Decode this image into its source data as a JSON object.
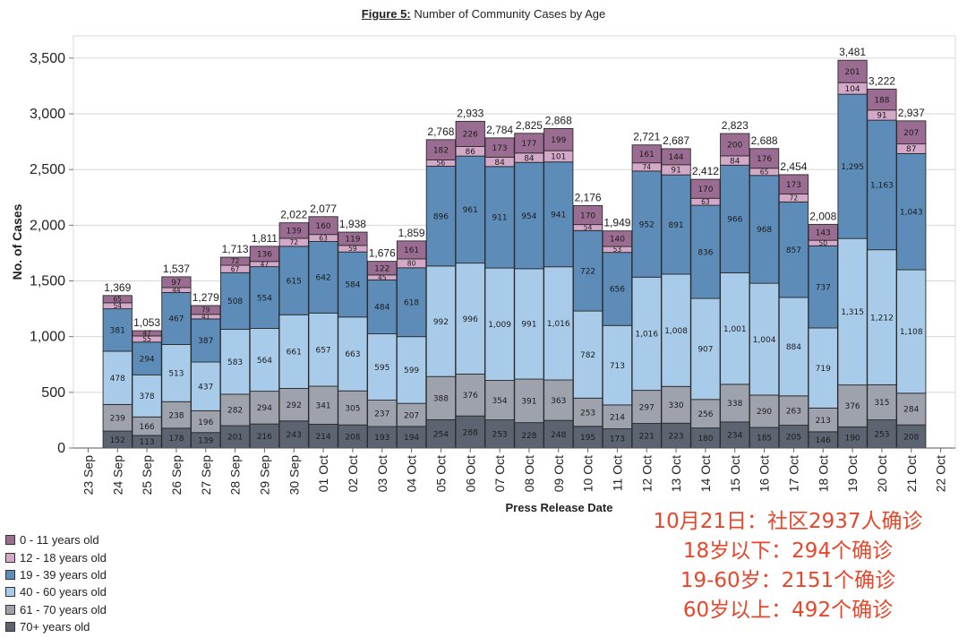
{
  "figure": {
    "label": "Figure 5:",
    "title": "Number of Community Cases by Age"
  },
  "chart_data": {
    "type": "bar",
    "stacked": true,
    "xlabel": "Press Release Date",
    "ylabel": "No. of Cases",
    "ylim": [
      0,
      3700
    ],
    "yticks": [
      0,
      500,
      1000,
      1500,
      2000,
      2500,
      3000,
      3500
    ],
    "x_tick_labels": [
      "23 Sep",
      "24 Sep",
      "25 Sep",
      "26 Sep",
      "27 Sep",
      "28 Sep",
      "29 Sep",
      "30 Sep",
      "01 Oct",
      "02 Oct",
      "03 Oct",
      "04 Oct",
      "05 Oct",
      "06 Oct",
      "07 Oct",
      "08 Oct",
      "09 Oct",
      "10 Oct",
      "11 Oct",
      "12 Oct",
      "13 Oct",
      "14 Oct",
      "15 Oct",
      "16 Oct",
      "17 Oct",
      "18 Oct",
      "19 Oct",
      "20 Oct",
      "21 Oct",
      "22 Oct"
    ],
    "categories": [
      "24 Sep",
      "25 Sep",
      "26 Sep",
      "27 Sep",
      "28 Sep",
      "29 Sep",
      "30 Sep",
      "01 Oct",
      "02 Oct",
      "03 Oct",
      "04 Oct",
      "05 Oct",
      "06 Oct",
      "07 Oct",
      "08 Oct",
      "09 Oct",
      "10 Oct",
      "11 Oct",
      "12 Oct",
      "13 Oct",
      "14 Oct",
      "15 Oct",
      "16 Oct",
      "17 Oct",
      "18 Oct",
      "19 Oct",
      "20 Oct",
      "21 Oct"
    ],
    "totals": [
      1369,
      1053,
      1537,
      1279,
      1713,
      1811,
      2022,
      2077,
      1938,
      1676,
      1859,
      2768,
      2933,
      2784,
      2825,
      2868,
      2176,
      1949,
      2721,
      2687,
      2412,
      2823,
      2688,
      2454,
      2008,
      3481,
      3222,
      2937
    ],
    "total_labels": [
      "1,369",
      "1,053",
      "1,537",
      "1,279",
      "1,713",
      "1,811",
      "2,022",
      "2,077",
      "1,938",
      "1,676",
      "1,859",
      "2,768",
      "2,933",
      "2,784",
      "2,825",
      "2,868",
      "2,176",
      "1,949",
      "2,721",
      "2,687",
      "2,412",
      "2,823",
      "2,688",
      "2,454",
      "2,008",
      "3,481",
      "3,222",
      "2,937"
    ],
    "series": [
      {
        "name": "70+ years old",
        "color": "#5b6470",
        "values": [
          152,
          113,
          178,
          139,
          201,
          216,
          243,
          214,
          208,
          193,
          194,
          254,
          288,
          253,
          228,
          248,
          195,
          173,
          221,
          223,
          180,
          234,
          185,
          205,
          146,
          190,
          253,
          208
        ],
        "labels": [
          "152",
          "113",
          "178",
          "139",
          "201",
          "216",
          "243",
          "214",
          "208",
          "193",
          "194",
          "254",
          "288",
          "253",
          "228",
          "248",
          "195",
          "173",
          "221",
          "223",
          "180",
          "234",
          "185",
          "205",
          "146",
          "190",
          "253",
          "208"
        ]
      },
      {
        "name": "61 - 70 years old",
        "color": "#9da2ac",
        "values": [
          239,
          166,
          238,
          196,
          282,
          294,
          292,
          341,
          305,
          237,
          207,
          388,
          376,
          354,
          391,
          363,
          253,
          214,
          297,
          330,
          256,
          338,
          290,
          263,
          213,
          376,
          315,
          284
        ],
        "labels": [
          "239",
          "166",
          "238",
          "196",
          "282",
          "294",
          "292",
          "341",
          "305",
          "237",
          "207",
          "388",
          "376",
          "354",
          "391",
          "363",
          "253",
          "214",
          "297",
          "330",
          "256",
          "338",
          "290",
          "263",
          "213",
          "376",
          "315",
          "284"
        ]
      },
      {
        "name": "40 - 60 years old",
        "color": "#a9cbea",
        "values": [
          478,
          378,
          513,
          437,
          583,
          564,
          661,
          657,
          663,
          595,
          599,
          992,
          996,
          1009,
          991,
          1016,
          782,
          713,
          1016,
          1008,
          907,
          1001,
          1004,
          884,
          719,
          1315,
          1212,
          1108
        ],
        "labels": [
          "478",
          "378",
          "513",
          "437",
          "583",
          "564",
          "661",
          "657",
          "663",
          "595",
          "599",
          "992",
          "996",
          "1,009",
          "991",
          "1,016",
          "782",
          "713",
          "1,016",
          "1,008",
          "907",
          "1,001",
          "1,004",
          "884",
          "719",
          "1,315",
          "1,212",
          "1,108"
        ]
      },
      {
        "name": "19 - 39 years old",
        "color": "#5d8cb8",
        "values": [
          381,
          294,
          467,
          387,
          508,
          554,
          615,
          642,
          584,
          484,
          618,
          896,
          961,
          911,
          954,
          941,
          722,
          656,
          952,
          891,
          836,
          966,
          968,
          857,
          737,
          1295,
          1163,
          1043
        ],
        "labels": [
          "381",
          "294",
          "467",
          "387",
          "508",
          "554",
          "615",
          "642",
          "584",
          "484",
          "618",
          "896",
          "961",
          "911",
          "954",
          "941",
          "722",
          "656",
          "952",
          "891",
          "836",
          "966",
          "968",
          "857",
          "737",
          "1,295",
          "1,163",
          "1,043"
        ]
      },
      {
        "name": "12 - 18 years old",
        "color": "#d4a8c8",
        "values": [
          54,
          55,
          44,
          41,
          67,
          47,
          72,
          63,
          59,
          45,
          80,
          56,
          86,
          84,
          84,
          101,
          54,
          53,
          74,
          91,
          63,
          84,
          65,
          72,
          50,
          104,
          91,
          87
        ],
        "labels": [
          "54",
          "55",
          "44",
          "41",
          "67",
          "47",
          "72",
          "63",
          "59",
          "45",
          "80",
          "56",
          "86",
          "84",
          "84",
          "101",
          "54",
          "53",
          "74",
          "91",
          "63",
          "84",
          "65",
          "72",
          "50",
          "104",
          "91",
          "87"
        ]
      },
      {
        "name": "0 - 11 years old",
        "color": "#9b6c92",
        "values": [
          65,
          47,
          97,
          79,
          72,
          136,
          139,
          160,
          119,
          122,
          161,
          182,
          226,
          173,
          177,
          199,
          170,
          140,
          161,
          144,
          170,
          200,
          176,
          173,
          143,
          201,
          188,
          207
        ],
        "labels": [
          "65",
          "47",
          "97",
          "79",
          "72",
          "136",
          "139",
          "160",
          "119",
          "122",
          "161",
          "182",
          "226",
          "173",
          "177",
          "199",
          "170",
          "140",
          "161",
          "144",
          "170",
          "200",
          "176",
          "173",
          "143",
          "201",
          "188",
          "207"
        ]
      }
    ],
    "legend_order": [
      "0 - 11 years old",
      "12 - 18 years old",
      "19 - 39 years old",
      "40 - 60 years old",
      "61 - 70 years old",
      "70+ years old"
    ],
    "legend_position": "bottom-left",
    "grid": true
  },
  "annotation": {
    "lines": [
      "10月21日：社区2937人确诊",
      "18岁以下：294个确诊",
      "19-60岁：2151个确诊",
      "60岁以上：492个确诊"
    ],
    "color": "#e8462a"
  }
}
